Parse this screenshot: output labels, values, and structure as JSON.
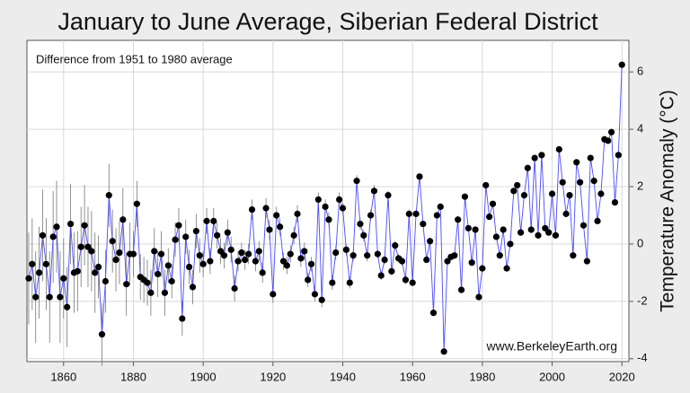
{
  "chart_data": {
    "type": "line",
    "title": "January to June Average, Siberian Federal District",
    "subtitle": "Difference from 1951 to 1980 average",
    "y_label": "Temperature Anomaly (°C)",
    "annotation": "www.BerkeleyEarth.org",
    "xlim": [
      1849.5,
      2022
    ],
    "ylim": [
      -4.1,
      7.1
    ],
    "xticks": [
      1860,
      1880,
      1900,
      1920,
      1940,
      1960,
      1980,
      2000,
      2020
    ],
    "yticks": [
      -4,
      -2,
      0,
      2,
      4,
      6
    ],
    "grid": true,
    "line_color": "#4a4aff",
    "marker_color": "#000000",
    "error_color": "#777777",
    "x": [
      1850,
      1851,
      1852,
      1853,
      1854,
      1855,
      1856,
      1857,
      1858,
      1859,
      1860,
      1861,
      1862,
      1863,
      1864,
      1865,
      1866,
      1867,
      1868,
      1869,
      1870,
      1871,
      1872,
      1873,
      1874,
      1875,
      1876,
      1877,
      1878,
      1879,
      1880,
      1881,
      1882,
      1883,
      1884,
      1885,
      1886,
      1887,
      1888,
      1889,
      1890,
      1891,
      1892,
      1893,
      1894,
      1895,
      1896,
      1897,
      1898,
      1899,
      1900,
      1901,
      1902,
      1903,
      1904,
      1905,
      1906,
      1907,
      1908,
      1909,
      1910,
      1911,
      1912,
      1913,
      1914,
      1915,
      1916,
      1917,
      1918,
      1919,
      1920,
      1921,
      1922,
      1923,
      1924,
      1925,
      1926,
      1927,
      1928,
      1929,
      1930,
      1931,
      1932,
      1933,
      1934,
      1935,
      1936,
      1937,
      1938,
      1939,
      1940,
      1941,
      1942,
      1943,
      1944,
      1945,
      1946,
      1947,
      1948,
      1949,
      1950,
      1951,
      1952,
      1953,
      1954,
      1955,
      1956,
      1957,
      1958,
      1959,
      1960,
      1961,
      1962,
      1963,
      1964,
      1965,
      1966,
      1967,
      1968,
      1969,
      1970,
      1971,
      1972,
      1973,
      1974,
      1975,
      1976,
      1977,
      1978,
      1979,
      1980,
      1981,
      1982,
      1983,
      1984,
      1985,
      1986,
      1987,
      1988,
      1989,
      1990,
      1991,
      1992,
      1993,
      1994,
      1995,
      1996,
      1997,
      1998,
      1999,
      2000,
      2001,
      2002,
      2003,
      2004,
      2005,
      2006,
      2007,
      2008,
      2009,
      2010,
      2011,
      2012,
      2013,
      2014,
      2015,
      2016,
      2017,
      2018,
      2019,
      2020
    ],
    "values": [
      -1.2,
      -0.7,
      -1.85,
      -1.0,
      0.3,
      -0.7,
      -1.85,
      0.25,
      0.6,
      -1.85,
      -1.2,
      -2.2,
      0.7,
      -1.0,
      -0.95,
      -0.1,
      0.65,
      -0.1,
      -0.25,
      -1.0,
      -0.8,
      -3.15,
      -1.3,
      1.7,
      0.1,
      -0.55,
      -0.3,
      0.85,
      -1.4,
      -0.35,
      -0.35,
      1.4,
      -1.15,
      -1.25,
      -1.35,
      -1.7,
      -0.25,
      -1.05,
      -0.35,
      -1.7,
      -0.75,
      -1.3,
      0.15,
      0.65,
      -2.6,
      0.25,
      -0.8,
      -1.5,
      0.45,
      -0.4,
      -0.7,
      0.8,
      -0.6,
      0.8,
      0.3,
      -0.25,
      -0.4,
      0.4,
      -0.2,
      -1.55,
      -0.6,
      -0.3,
      -0.55,
      -0.35,
      1.2,
      -0.6,
      -0.25,
      -1.0,
      1.25,
      0.5,
      -1.75,
      1.0,
      0.6,
      -0.6,
      -0.75,
      -0.35,
      0.3,
      1.05,
      -0.5,
      -0.25,
      -1.25,
      -0.7,
      -1.75,
      1.55,
      -1.95,
      1.3,
      0.85,
      -1.35,
      -0.3,
      1.55,
      1.25,
      -0.2,
      -1.35,
      -0.4,
      2.2,
      0.7,
      0.3,
      -0.4,
      1.0,
      1.85,
      -0.35,
      -1.1,
      -0.55,
      1.7,
      -0.95,
      -0.05,
      -0.5,
      -0.6,
      -1.25,
      1.05,
      -1.35,
      1.05,
      2.35,
      0.7,
      -0.55,
      0.1,
      -2.4,
      1.0,
      1.3,
      -3.75,
      -0.6,
      -0.45,
      -0.4,
      0.85,
      -1.6,
      1.65,
      0.55,
      -0.65,
      0.5,
      -1.85,
      -0.85,
      2.05,
      0.95,
      1.4,
      0.25,
      -0.4,
      0.5,
      -0.85,
      0,
      1.85,
      2.05,
      0.4,
      1.7,
      2.65,
      0.5,
      3.0,
      0.3,
      3.1,
      0.55,
      0.4,
      1.75,
      0.3,
      3.3,
      2.15,
      1.05,
      1.7,
      -0.4,
      2.85,
      2.15,
      0.65,
      -0.6,
      3.0,
      2.2,
      0.8,
      1.75,
      3.65,
      3.6,
      3.9,
      1.45,
      3.1,
      6.25
    ],
    "errors": [
      1.6,
      1.6,
      1.6,
      1.6,
      1.6,
      1.6,
      1.6,
      1.6,
      1.6,
      1.6,
      1.4,
      1.4,
      1.4,
      1.4,
      1.4,
      1.4,
      1.4,
      1.4,
      1.4,
      1.4,
      1.1,
      1.1,
      1.1,
      1.1,
      1.1,
      1.1,
      1.1,
      1.1,
      1.1,
      1.1,
      0.8,
      0.8,
      0.8,
      0.8,
      0.8,
      0.8,
      0.8,
      0.8,
      0.8,
      0.8,
      0.6,
      0.6,
      0.6,
      0.6,
      0.6,
      0.6,
      0.6,
      0.6,
      0.6,
      0.6,
      0.45,
      0.45,
      0.45,
      0.45,
      0.45,
      0.45,
      0.45,
      0.45,
      0.45,
      0.45,
      0.35,
      0.35,
      0.35,
      0.35,
      0.35,
      0.35,
      0.35,
      0.35,
      0.35,
      0.35,
      0.3,
      0.3,
      0.3,
      0.3,
      0.3,
      0.3,
      0.3,
      0.3,
      0.3,
      0.3,
      0.25,
      0.25,
      0.25,
      0.25,
      0.25,
      0.25,
      0.25,
      0.25,
      0.25,
      0.25,
      0.2,
      0.2,
      0.2,
      0.2,
      0.2,
      0.2,
      0.2,
      0.2,
      0.2,
      0.2,
      0.15,
      0.15,
      0.15,
      0.15,
      0.15,
      0.15,
      0.15,
      0.15,
      0.15,
      0.15,
      0.1,
      0.1,
      0.1,
      0.1,
      0.1,
      0.1,
      0.1,
      0.1,
      0.1,
      0.1,
      0.1,
      0.1,
      0.1,
      0.1,
      0.1,
      0.1,
      0.1,
      0.1,
      0.1,
      0.1,
      0.1,
      0.1,
      0.1,
      0.1,
      0.1,
      0.1,
      0.1,
      0.1,
      0.1,
      0.1,
      0.1,
      0.1,
      0.1,
      0.1,
      0.1,
      0.1,
      0.1,
      0.1,
      0.1,
      0.1,
      0.1,
      0.1,
      0.1,
      0.1,
      0.1,
      0.1,
      0.1,
      0.1,
      0.1,
      0.1,
      0.1,
      0.1,
      0.1,
      0.1,
      0.1,
      0.1,
      0.1,
      0.1,
      0.1,
      0.1,
      0.1
    ]
  }
}
